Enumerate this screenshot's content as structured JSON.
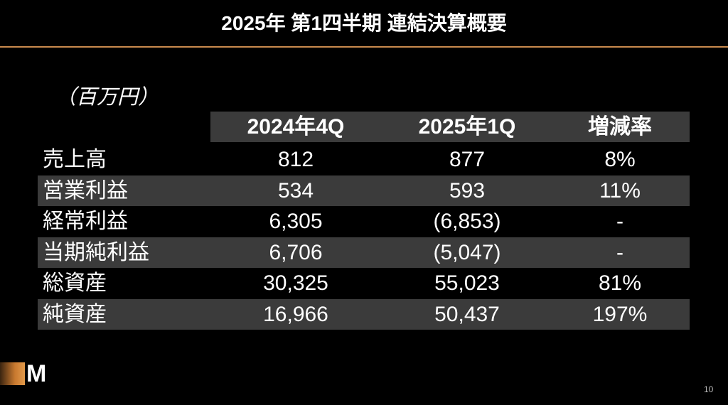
{
  "header": {
    "title": "2025年 第1四半期 連結決算概要"
  },
  "unit": "（百万円）",
  "table": {
    "columns": [
      "2024年4Q",
      "2025年1Q",
      "増減率"
    ],
    "rows": [
      [
        "売上高",
        "812",
        "877",
        "8%"
      ],
      [
        "営業利益",
        "534",
        "593",
        "11%"
      ],
      [
        "経常利益",
        "6,305",
        "(6,853)",
        "-"
      ],
      [
        "当期純利益",
        "6,706",
        "(5,047)",
        "-"
      ],
      [
        "総資産",
        "30,325",
        "55,023",
        "81%"
      ],
      [
        "純資産",
        "16,966",
        "50,437",
        "197%"
      ]
    ]
  },
  "footer": {
    "logo": "M",
    "page": "10"
  }
}
